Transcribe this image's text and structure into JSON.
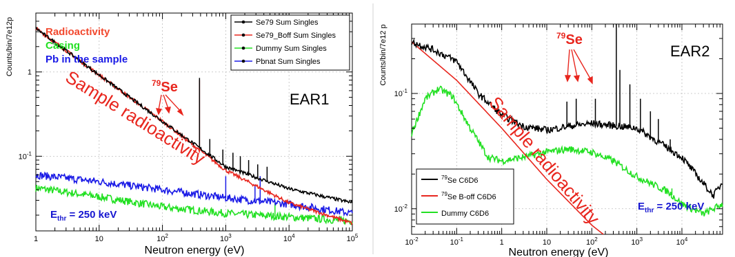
{
  "colors": {
    "black": "#000000",
    "red": "#e8261e",
    "green": "#22e022",
    "blue": "#1a1ae6",
    "annotation_red": "#e8261e",
    "ethr_blue": "#1515d0"
  },
  "chart_data": [
    {
      "type": "line",
      "panel": "EAR1",
      "panel_label": "EAR1",
      "xlabel": "Neutron energy (eV)",
      "ylabel": "Counts/bin/7e12p",
      "xscale": "log",
      "yscale": "log",
      "xlim": [
        1,
        100000
      ],
      "ylim": [
        0.013,
        5
      ],
      "x_ticks": [
        {
          "v": 1,
          "base": "1",
          "exp": ""
        },
        {
          "v": 10,
          "base": "10",
          "exp": ""
        },
        {
          "v": 100,
          "base": "10",
          "exp": "2"
        },
        {
          "v": 1000,
          "base": "10",
          "exp": "3"
        },
        {
          "v": 10000,
          "base": "10",
          "exp": "4"
        },
        {
          "v": 100000,
          "base": "10",
          "exp": "5"
        }
      ],
      "y_ticks": [
        {
          "v": 1,
          "base": "1",
          "exp": ""
        },
        {
          "v": 0.1,
          "base": "10",
          "exp": "-1"
        }
      ],
      "legend": {
        "position": "top-right",
        "entries": [
          "Se79 Sum Singles",
          "Se79_Boff Sum Singles",
          "Dummy Sum Singles",
          "Pbnat Sum Singles"
        ]
      },
      "color_key": [
        {
          "text": "Radioactivity",
          "color": "#f2482e"
        },
        {
          "text": "Casing",
          "color": "#22e022"
        },
        {
          "text": "Pb in the sample",
          "color": "#1a1ae6"
        }
      ],
      "series": [
        {
          "name": "Se79 Sum Singles",
          "color": "#000000",
          "x": [
            1,
            10,
            100,
            1000,
            10000,
            100000
          ],
          "y": [
            3.3,
            0.92,
            0.26,
            0.075,
            0.041,
            0.028
          ],
          "peaks": [
            [
              385,
              0.85
            ],
            [
              560,
              0.16
            ],
            [
              900,
              0.12
            ],
            [
              1300,
              0.11
            ],
            [
              1700,
              0.1
            ],
            [
              2300,
              0.09
            ],
            [
              3200,
              0.08
            ],
            [
              4500,
              0.075
            ]
          ]
        },
        {
          "name": "Se79_Boff Sum Singles",
          "color": "#e8261e",
          "x": [
            1,
            10,
            100,
            1000,
            10000,
            100000
          ],
          "y": [
            3.3,
            0.92,
            0.26,
            0.068,
            0.028,
            0.016
          ],
          "peaks": [
            [
              385,
              0.8
            ]
          ]
        },
        {
          "name": "Dummy Sum Singles",
          "color": "#22e022",
          "x": [
            1,
            10,
            100,
            1000,
            10000,
            100000
          ],
          "y": [
            0.042,
            0.033,
            0.025,
            0.021,
            0.019,
            0.017
          ],
          "peaks": [
            [
              6000,
              0.028
            ]
          ]
        },
        {
          "name": "Pbnat Sum Singles",
          "color": "#1a1ae6",
          "x": [
            1,
            10,
            100,
            1000,
            10000,
            100000
          ],
          "y": [
            0.06,
            0.05,
            0.04,
            0.032,
            0.027,
            0.021
          ],
          "peaks": [
            [
              5.2,
              0.052
            ],
            [
              1000,
              0.058
            ],
            [
              2900,
              0.046
            ],
            [
              3500,
              0.058
            ]
          ]
        }
      ],
      "annotations": {
        "diagonal": "Sample radioactivity",
        "isotope_sup": "79",
        "isotope": "Se",
        "ethr_main": "E",
        "ethr_sub": "thr",
        "ethr_rest": " = 250 keV"
      }
    },
    {
      "type": "line",
      "panel": "EAR2",
      "panel_label": "EAR2",
      "xlabel": "Neutron energy (eV)",
      "ylabel": "Counts/bin/7e12 p",
      "xscale": "log",
      "yscale": "log",
      "xlim": [
        0.01,
        80000
      ],
      "ylim": [
        0.006,
        0.4
      ],
      "x_ticks": [
        {
          "v": 0.01,
          "base": "10",
          "exp": "-2"
        },
        {
          "v": 0.1,
          "base": "10",
          "exp": "-1"
        },
        {
          "v": 1,
          "base": "1",
          "exp": ""
        },
        {
          "v": 10,
          "base": "10",
          "exp": ""
        },
        {
          "v": 100,
          "base": "10",
          "exp": "2"
        },
        {
          "v": 1000,
          "base": "10",
          "exp": "3"
        },
        {
          "v": 10000,
          "base": "10",
          "exp": "4"
        }
      ],
      "y_ticks": [
        {
          "v": 0.1,
          "base": "10",
          "exp": "-1"
        },
        {
          "v": 0.01,
          "base": "10",
          "exp": "-2"
        }
      ],
      "legend": {
        "position": "bottom-left",
        "entries": [
          {
            "sup": "79",
            "text": "Se C6D6"
          },
          {
            "sup": "79",
            "text": "Se B-off C6D6"
          },
          {
            "sup": "",
            "text": "Dummy C6D6"
          }
        ]
      },
      "series": [
        {
          "name": "79Se C6D6",
          "color": "#000000",
          "x": [
            0.01,
            0.03,
            0.1,
            0.3,
            1,
            3,
            10,
            30,
            100,
            1000,
            10000,
            50000,
            80000
          ],
          "y": [
            0.28,
            0.24,
            0.19,
            0.1,
            0.065,
            0.052,
            0.048,
            0.052,
            0.055,
            0.05,
            0.028,
            0.013,
            0.017
          ],
          "peaks": [
            [
              28,
              0.085
            ],
            [
              45,
              0.09
            ],
            [
              120,
              0.09
            ],
            [
              350,
              0.4
            ],
            [
              420,
              0.16
            ],
            [
              700,
              0.12
            ],
            [
              1200,
              0.09
            ],
            [
              2000,
              0.07
            ],
            [
              3000,
              0.06
            ],
            [
              5500,
              0.04
            ]
          ]
        },
        {
          "name": "79Se B-off C6D6",
          "color": "#e8261e",
          "x": [
            0.01,
            0.1,
            1,
            10,
            100,
            180
          ],
          "y": [
            0.28,
            0.13,
            0.05,
            0.018,
            0.0072,
            0.006
          ]
        },
        {
          "name": "Dummy C6D6",
          "color": "#22e022",
          "x": [
            0.01,
            0.02,
            0.04,
            0.08,
            0.2,
            0.5,
            1,
            3,
            10,
            30,
            100,
            300,
            1000,
            5000,
            10000,
            30000,
            80000
          ],
          "y": [
            0.045,
            0.09,
            0.11,
            0.095,
            0.05,
            0.028,
            0.026,
            0.028,
            0.031,
            0.033,
            0.031,
            0.026,
            0.019,
            0.014,
            0.011,
            0.009,
            0.011
          ],
          "peaks": [
            [
              6000,
              0.015
            ]
          ]
        }
      ],
      "annotations": {
        "diagonal": "Sample radioactivity",
        "isotope_sup": "79",
        "isotope": "Se",
        "ethr_main": "E",
        "ethr_sub": "thr",
        "ethr_rest": " = 250 keV"
      }
    }
  ]
}
